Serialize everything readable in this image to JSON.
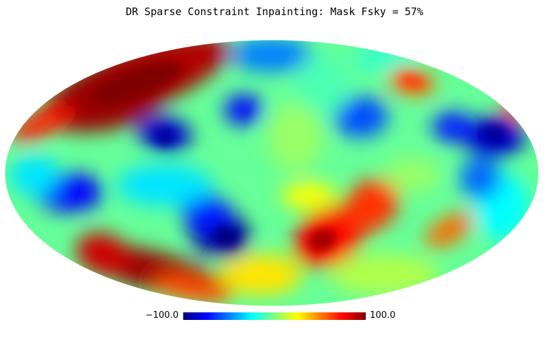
{
  "title": "DR Sparse Constraint Inpainting: Mask Fsky = 57%",
  "projection": "mollweide",
  "colormap": {
    "name": "jet",
    "stops": [
      "#00007f",
      "#0000ff",
      "#007fff",
      "#00ffff",
      "#7fff7f",
      "#ffff00",
      "#ff7f00",
      "#ff0000",
      "#7f0000"
    ]
  },
  "colorbar": {
    "min_label": "−100.0",
    "max_label": "100.0",
    "range": [
      -100.0,
      100.0
    ]
  },
  "background_level": -0.05
}
